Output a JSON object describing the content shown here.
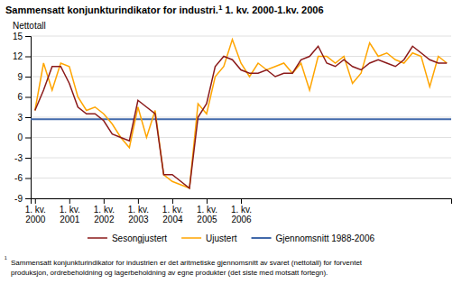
{
  "chart_data": {
    "type": "line",
    "title": [
      "Sammensatt konjunkturindikator for industri.",
      "1",
      " 1. kv. 2000-1.kv. 2006"
    ],
    "ylabel": "Nettotall",
    "categories": [
      "1. kv.\n2000",
      null,
      null,
      null,
      "1. kv.\n2001",
      null,
      null,
      null,
      "1. kv.\n2002",
      null,
      null,
      null,
      "1. kv.\n2003",
      null,
      null,
      null,
      "1. kv.\n2004",
      null,
      null,
      null,
      "1. kv.\n2005",
      null,
      null,
      null,
      "1. kv.\n2006",
      null,
      null,
      null,
      null,
      null,
      null,
      null,
      null,
      null,
      null,
      null,
      null,
      null,
      null,
      null,
      null,
      null,
      null,
      null,
      null,
      null,
      null,
      null,
      null
    ],
    "series": [
      {
        "name": "Sesongjustert",
        "color": "#8B1A1A",
        "values": [
          4.0,
          7.0,
          10.5,
          10.5,
          8.0,
          4.5,
          3.5,
          3.5,
          2.5,
          0.5,
          0.0,
          -0.5,
          5.5,
          4.5,
          3.5,
          -5.5,
          -5.5,
          -6.5,
          -7.5,
          3.0,
          5.0,
          10.5,
          12.0,
          11.5,
          10.0,
          9.5,
          9.5,
          10.0,
          9.0,
          9.5,
          9.5,
          11.5,
          12.0,
          13.5,
          11.0,
          10.5,
          11.5,
          10.5,
          10.0,
          11.0,
          11.5,
          11.0,
          10.5,
          11.5,
          13.5,
          12.5,
          11.5,
          11.0,
          11.0
        ]
      },
      {
        "name": "Ujustert",
        "color": "#FFA500",
        "values": [
          4.0,
          11.0,
          7.0,
          11.0,
          10.5,
          6.0,
          4.0,
          4.5,
          3.5,
          2.0,
          0.0,
          -1.5,
          4.5,
          0.0,
          4.0,
          -5.5,
          -6.5,
          -7.0,
          -7.5,
          5.0,
          3.5,
          9.0,
          10.5,
          14.5,
          11.0,
          9.0,
          11.0,
          10.0,
          10.5,
          11.0,
          9.5,
          11.0,
          7.0,
          12.0,
          12.0,
          11.0,
          12.0,
          8.0,
          9.5,
          14.0,
          12.0,
          12.5,
          11.5,
          11.0,
          12.5,
          12.0,
          7.5,
          12.0,
          11.0
        ]
      },
      {
        "name": "Gjennomsnitt 1988-2006",
        "color": "#4169AA",
        "type": "hline",
        "value": 2.7
      }
    ],
    "ylim": [
      -9,
      15
    ],
    "yticks": [
      -9,
      -6,
      -3,
      0,
      3,
      6,
      9,
      12,
      15
    ],
    "grid": true,
    "legend": "bottom",
    "annotations": [
      "¹",
      "Sammensatt konjunkturindikator for industrien er det aritmetiske gjennomsnitt av svaret (nettotall) for forventet",
      "produksjon, ordrebeholdning og lagerbeholdning av egne produkter (det siste med motsatt fortegn)."
    ]
  }
}
